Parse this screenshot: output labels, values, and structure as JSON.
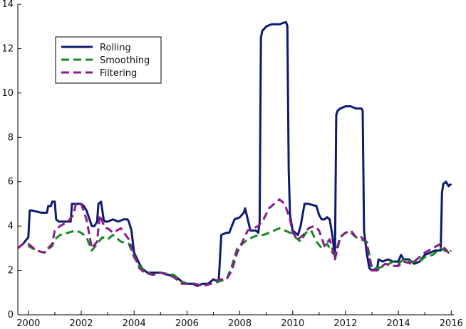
{
  "chart_data": {
    "type": "line",
    "title": "",
    "xlabel": "",
    "ylabel": "",
    "xlim": [
      1999.6,
      2016.1
    ],
    "ylim": [
      0,
      14
    ],
    "x_ticks": [
      2000,
      2002,
      2004,
      2006,
      2008,
      2010,
      2012,
      2014,
      2016
    ],
    "x_tick_labels": [
      "2000",
      "2002",
      "2004",
      "2006",
      "2008",
      "2010",
      "2012",
      "2014",
      "2016"
    ],
    "y_ticks": [
      0,
      2,
      4,
      6,
      8,
      10,
      12,
      14
    ],
    "y_tick_labels": [
      "0",
      "2",
      "4",
      "6",
      "8",
      "10",
      "12",
      "14"
    ],
    "grid": false,
    "legend_position": "top-left",
    "series": [
      {
        "name": "Rolling",
        "color": "#0d1a6e",
        "style": "solid",
        "x": [
          1999.6,
          1999.8,
          2000.0,
          2000.05,
          2000.15,
          2000.5,
          2000.7,
          2000.75,
          2000.85,
          2000.9,
          2001.0,
          2001.05,
          2001.15,
          2001.25,
          2001.6,
          2001.65,
          2001.75,
          2002.0,
          2002.1,
          2002.2,
          2002.4,
          2002.5,
          2002.6,
          2002.65,
          2002.75,
          2002.85,
          2002.9,
          2003.0,
          2003.2,
          2003.4,
          2003.6,
          2003.75,
          2003.8,
          2003.9,
          2004.0,
          2004.2,
          2004.3,
          2004.5,
          2004.7,
          2005.0,
          2005.3,
          2005.6,
          2005.8,
          2006.0,
          2006.2,
          2006.4,
          2006.6,
          2006.8,
          2007.0,
          2007.15,
          2007.2,
          2007.3,
          2007.5,
          2007.6,
          2007.8,
          2008.0,
          2008.15,
          2008.2,
          2008.4,
          2008.6,
          2008.7,
          2008.75,
          2008.8,
          2008.85,
          2009.0,
          2009.2,
          2009.5,
          2009.75,
          2009.8,
          2009.85,
          2009.9,
          2010.0,
          2010.1,
          2010.2,
          2010.3,
          2010.45,
          2010.6,
          2010.9,
          2011.0,
          2011.1,
          2011.2,
          2011.3,
          2011.4,
          2011.5,
          2011.6,
          2011.65,
          2011.7,
          2011.8,
          2012.0,
          2012.2,
          2012.4,
          2012.6,
          2012.65,
          2012.7,
          2012.8,
          2012.9,
          2013.0,
          2013.2,
          2013.25,
          2013.4,
          2013.6,
          2013.8,
          2014.0,
          2014.1,
          2014.2,
          2014.4,
          2014.6,
          2014.8,
          2015.0,
          2015.2,
          2015.4,
          2015.6,
          2015.65,
          2015.7,
          2015.8,
          2015.9,
          2016.0
        ],
        "y": [
          3.0,
          3.2,
          3.5,
          4.7,
          4.7,
          4.6,
          4.6,
          4.9,
          4.9,
          5.1,
          5.1,
          4.3,
          4.2,
          4.2,
          4.2,
          5.0,
          5.0,
          5.0,
          4.9,
          4.7,
          4.0,
          4.0,
          4.2,
          5.0,
          5.1,
          4.3,
          4.2,
          4.2,
          4.3,
          4.2,
          4.3,
          4.3,
          4.2,
          3.8,
          2.8,
          2.3,
          2.1,
          1.9,
          1.9,
          1.9,
          1.8,
          1.7,
          1.5,
          1.4,
          1.4,
          1.3,
          1.4,
          1.4,
          1.6,
          1.5,
          1.5,
          3.6,
          3.7,
          3.7,
          4.3,
          4.4,
          4.6,
          4.8,
          3.8,
          3.8,
          3.7,
          4.2,
          12.5,
          12.8,
          13.0,
          13.1,
          13.1,
          13.2,
          13.0,
          6.5,
          4.5,
          3.8,
          3.7,
          3.6,
          4.0,
          5.0,
          5.0,
          4.9,
          4.5,
          4.3,
          4.3,
          4.4,
          4.3,
          3.6,
          2.6,
          9.0,
          9.2,
          9.3,
          9.4,
          9.4,
          9.3,
          9.3,
          9.2,
          3.8,
          2.8,
          2.1,
          2.0,
          2.1,
          2.5,
          2.4,
          2.5,
          2.4,
          2.4,
          2.7,
          2.5,
          2.5,
          2.3,
          2.4,
          2.7,
          2.8,
          2.9,
          2.9,
          5.5,
          5.9,
          6.0,
          5.8,
          5.9
        ]
      },
      {
        "name": "Smoothing",
        "color": "#128a1f",
        "style": "dashed",
        "x": [
          1999.6,
          1999.8,
          2000.0,
          2000.3,
          2000.6,
          2000.9,
          2001.0,
          2001.2,
          2001.5,
          2001.8,
          2002.0,
          2002.2,
          2002.4,
          2002.6,
          2002.8,
          2003.0,
          2003.2,
          2003.5,
          2003.8,
          2004.0,
          2004.2,
          2004.4,
          2004.7,
          2005.0,
          2005.5,
          2005.8,
          2006.0,
          2006.3,
          2006.6,
          2006.9,
          2007.2,
          2007.5,
          2007.7,
          2007.9,
          2008.1,
          2008.3,
          2008.5,
          2008.7,
          2008.9,
          2009.1,
          2009.3,
          2009.5,
          2009.7,
          2009.9,
          2010.1,
          2010.3,
          2010.5,
          2010.7,
          2010.9,
          2011.1,
          2011.3,
          2011.5,
          2011.6,
          2011.8,
          2012.0,
          2012.2,
          2012.4,
          2012.6,
          2012.8,
          2013.0,
          2013.2,
          2013.5,
          2013.8,
          2014.0,
          2014.2,
          2014.5,
          2014.8,
          2015.0,
          2015.3,
          2015.6,
          2015.9,
          2016.0
        ],
        "y": [
          3.0,
          3.2,
          3.1,
          2.9,
          2.8,
          3.1,
          3.4,
          3.6,
          3.7,
          3.8,
          3.7,
          3.5,
          2.9,
          3.2,
          3.5,
          3.4,
          3.6,
          3.3,
          3.2,
          2.6,
          2.2,
          2.0,
          1.8,
          1.9,
          1.8,
          1.5,
          1.4,
          1.4,
          1.3,
          1.4,
          1.5,
          1.6,
          2.2,
          3.0,
          3.2,
          3.4,
          3.5,
          3.6,
          3.6,
          3.7,
          3.8,
          3.9,
          3.8,
          3.7,
          3.5,
          3.3,
          3.7,
          3.8,
          3.3,
          3.0,
          3.2,
          2.8,
          2.7,
          3.5,
          3.7,
          3.7,
          3.5,
          3.4,
          3.3,
          2.1,
          2.1,
          2.2,
          2.4,
          2.3,
          2.5,
          2.4,
          2.4,
          2.6,
          2.7,
          3.0,
          2.8,
          2.9
        ]
      },
      {
        "name": "Filtering",
        "color": "#8b1a8b",
        "style": "dashed",
        "x": [
          1999.6,
          1999.8,
          2000.0,
          2000.3,
          2000.6,
          2000.9,
          2001.0,
          2001.2,
          2001.5,
          2001.7,
          2001.8,
          2002.0,
          2002.2,
          2002.4,
          2002.6,
          2002.7,
          2002.9,
          2003.0,
          2003.2,
          2003.5,
          2003.8,
          2004.0,
          2004.2,
          2004.4,
          2004.7,
          2005.0,
          2005.5,
          2005.8,
          2006.0,
          2006.3,
          2006.6,
          2006.9,
          2007.2,
          2007.5,
          2007.7,
          2007.9,
          2008.1,
          2008.3,
          2008.5,
          2008.7,
          2008.9,
          2009.1,
          2009.3,
          2009.5,
          2009.7,
          2009.9,
          2010.0,
          2010.2,
          2010.4,
          2010.6,
          2010.8,
          2011.0,
          2011.2,
          2011.4,
          2011.5,
          2011.6,
          2011.8,
          2012.0,
          2012.2,
          2012.4,
          2012.6,
          2012.8,
          2013.0,
          2013.2,
          2013.5,
          2013.8,
          2014.0,
          2014.2,
          2014.5,
          2014.8,
          2015.0,
          2015.3,
          2015.6,
          2015.9,
          2016.0
        ],
        "y": [
          3.0,
          3.2,
          3.2,
          2.9,
          2.8,
          3.2,
          3.8,
          4.0,
          4.2,
          4.5,
          5.0,
          5.0,
          4.3,
          3.0,
          3.3,
          4.5,
          3.9,
          3.9,
          3.7,
          3.9,
          3.4,
          2.7,
          2.1,
          1.9,
          1.8,
          1.9,
          1.7,
          1.4,
          1.4,
          1.4,
          1.3,
          1.4,
          1.6,
          1.6,
          2.0,
          2.8,
          3.3,
          3.8,
          3.9,
          4.0,
          4.3,
          4.8,
          5.0,
          5.2,
          5.0,
          4.3,
          3.7,
          3.4,
          3.6,
          3.9,
          4.0,
          3.8,
          3.1,
          3.4,
          3.0,
          2.5,
          3.5,
          3.7,
          3.8,
          3.5,
          3.5,
          3.2,
          2.0,
          2.0,
          2.3,
          2.2,
          2.2,
          2.4,
          2.3,
          2.6,
          2.8,
          3.0,
          3.2,
          2.8,
          2.9
        ]
      }
    ]
  }
}
